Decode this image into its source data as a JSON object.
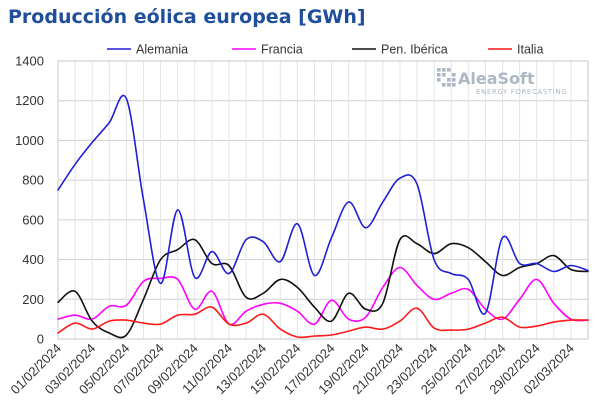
{
  "logo": {
    "name": "AleaSoft",
    "tagline": "ENERGY FORECASTING",
    "color": "#aeb8c4"
  },
  "chart_data": {
    "type": "line",
    "title": "Producción eólica europea [GWh]",
    "xlabel": "",
    "ylabel": "",
    "ylim": [
      0,
      1400
    ],
    "yticks": [
      0,
      200,
      400,
      600,
      800,
      1000,
      1200,
      1400
    ],
    "grid": true,
    "legend_position": "top",
    "x": [
      "01/02/2024",
      "02/02/2024",
      "03/02/2024",
      "04/02/2024",
      "05/02/2024",
      "06/02/2024",
      "07/02/2024",
      "08/02/2024",
      "09/02/2024",
      "10/02/2024",
      "11/02/2024",
      "12/02/2024",
      "13/02/2024",
      "14/02/2024",
      "15/02/2024",
      "16/02/2024",
      "17/02/2024",
      "18/02/2024",
      "19/02/2024",
      "20/02/2024",
      "21/02/2024",
      "22/02/2024",
      "23/02/2024",
      "24/02/2024",
      "25/02/2024",
      "26/02/2024",
      "27/02/2024",
      "28/02/2024",
      "29/02/2024",
      "01/03/2024",
      "02/03/2024",
      "03/03/2024"
    ],
    "xticks": [
      "01/02/2024",
      "03/02/2024",
      "05/02/2024",
      "07/02/2024",
      "09/02/2024",
      "11/02/2024",
      "13/02/2024",
      "15/02/2024",
      "17/02/2024",
      "19/02/2024",
      "21/02/2024",
      "23/02/2024",
      "25/02/2024",
      "27/02/2024",
      "29/02/2024",
      "02/03/2024"
    ],
    "series": [
      {
        "name": "Alemania",
        "color": "#1f1fd6",
        "values": [
          750,
          880,
          990,
          1090,
          1210,
          700,
          280,
          650,
          310,
          440,
          330,
          500,
          490,
          390,
          580,
          320,
          510,
          690,
          560,
          690,
          810,
          780,
          400,
          330,
          300,
          130,
          510,
          380,
          380,
          340,
          370,
          345
        ]
      },
      {
        "name": "Francia",
        "color": "#ff00ff",
        "values": [
          100,
          120,
          100,
          165,
          170,
          290,
          305,
          300,
          150,
          240,
          75,
          140,
          175,
          180,
          140,
          75,
          195,
          100,
          110,
          260,
          360,
          270,
          200,
          230,
          250,
          150,
          100,
          200,
          300,
          180,
          100,
          95
        ]
      },
      {
        "name": "Pen. Ibérica",
        "color": "#111111",
        "values": [
          185,
          240,
          90,
          30,
          20,
          200,
          400,
          450,
          500,
          380,
          370,
          210,
          230,
          300,
          260,
          160,
          90,
          230,
          150,
          180,
          500,
          480,
          430,
          480,
          460,
          390,
          320,
          360,
          380,
          420,
          350,
          340
        ]
      },
      {
        "name": "Italia",
        "color": "#ff1a1a",
        "values": [
          30,
          80,
          50,
          90,
          95,
          80,
          75,
          120,
          125,
          160,
          75,
          80,
          125,
          50,
          10,
          15,
          20,
          40,
          60,
          50,
          90,
          155,
          55,
          45,
          50,
          80,
          110,
          60,
          65,
          85,
          95,
          95
        ]
      }
    ]
  }
}
